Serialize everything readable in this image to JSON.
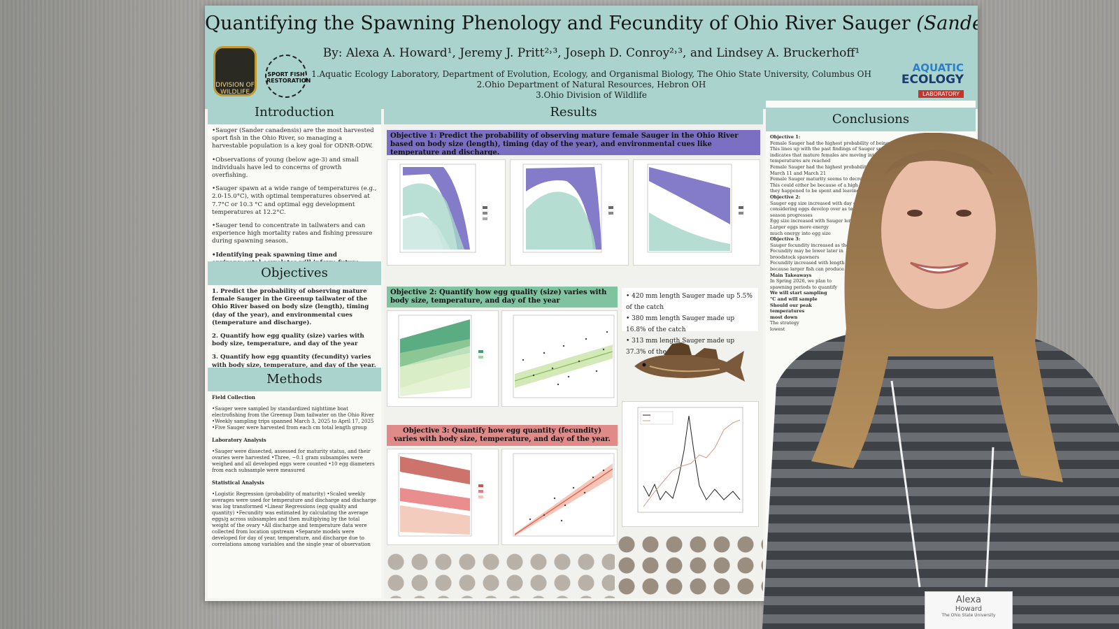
{
  "poster": {
    "title_main": "Quantifying the Spawning Phenology and Fecundity of Ohio River Sauger",
    "title_species": "(Sander canadensis)",
    "authors": "By: Alexa A. Howard¹, Jeremy J. Pritt²˒³, Joseph D. Conroy²˒³, and Lindsey A. Bruckerhoff¹",
    "affiliations": [
      "1.Aquatic Ecology Laboratory, Department of Evolution, Ecology, and Organismal Biology, The Ohio State University, Columbus OH",
      "2.Ohio Department of Natural Resources, Hebron OH",
      "3.Ohio Division of Wildlife"
    ],
    "logos": {
      "odnr": "DIVISION OF WILDLIFE",
      "sfr": "SPORT FISH RESTORATION",
      "aquatic_line1": "AQUATIC",
      "aquatic_line2": "ECOLOGY",
      "aquatic_line3": "LABORATORY"
    },
    "introduction": {
      "heading": "Introduction",
      "bullets": [
        "•Sauger (Sander canadensis) are the most harvested sport fish in the Ohio River, so managing a harvestable population is a key goal for ODNR-ODW.",
        "•Observations of young (below age-3) and small individuals have led to concerns of growth overfishing.",
        "•Sauger spawn at a wide range of temperatures (e.g., 2.0-15.0°C), with optimal temperatures observed at 7.7°C or 10.3 °C and optimal egg development temperatures at 12.2°C.",
        "•Sauger tend to concentrate in tailwaters and can experience high mortality rates and fishing pressure during spawning season."
      ],
      "bold_bullet": "•Identifying peak spawning time and environmental correlates will inform future studies of reproductive trait variation across the Ohio River and collection of broodstock from the Ohio River for Sauger reintroduction to Lake Erie"
    },
    "objectives": {
      "heading": "Objectives",
      "items": [
        "1. Predict the probability of observing mature female Sauger in the Greenup tailwater of the Ohio River based on body size (length), timing (day of the year), and environmental cues (temperature and discharge).",
        "2. Quantify how egg quality (size) varies with body size, temperature, and day of the year",
        "3. Quantify how egg quantity (fecundity) varies with body size, temperature, and day of the year."
      ]
    },
    "methods": {
      "heading": "Methods",
      "field_heading": "Field Collection",
      "field_text": "•Sauger were sampled by standardized nighttime boat electrofishing from the Greenup Dam tailwater on the Ohio River •Weekly sampling trips spanned March 3, 2025 to April 17, 2025 •Five Sauger were harvested from each cm total length group",
      "lab_heading": "Laboratory Analysis",
      "lab_text": "•Sauger were dissected, assessed for maturity status, and their ovaries were harvested •Three, ~0.1 gram subsamples were weighed and all developed eggs were counted •10 egg diameters from each subsample were measured",
      "stat_heading": "Statistical Analysis",
      "stat_text": "•Logistic Regression (probability of maturity) •Scaled weekly averages were used for temperature and discharge and discharge was log transformed •Linear Regressions (egg quality and quantity) •Fecundity was estimated by calculating the average eggs/g across subsamples and then multiplying by the total weight of the ovary •All discharge and temperature data were collected from location upstream •Separate models were developed for day of year, temperature, and discharge due to correlations among variables and the single year of observation"
    },
    "results": {
      "heading": "Results",
      "objective1": "Objective 1: Predict the probability of observing mature female Sauger in the Ohio River based on body size (length), timing (day of the year), and environmental cues like temperature and discharge.",
      "objective2": "Objective 2: Quantify how egg quality (size) varies with body size, temperature, and day of the year",
      "objective3": "Objective 3: Quantify how egg quantity (fecundity) varies with body size, temperature, and day of the year.",
      "catch_stats": [
        "• 420 mm length Sauger made up 5.5% of the catch",
        "• 380 mm length Sauger made up 16.8% of the catch",
        "• 313 mm length Sauger made up 37.3% of the catch"
      ]
    },
    "conclusions": {
      "heading": "Conclusions",
      "lines": [
        "Objective 1:",
        "Female Sauger had the highest probability of being mature at",
        "This lines up with the past findings of Sauger spawning",
        "indicates that mature females are moving into the",
        "temperatures are reached",
        "Female Sauger had the highest probability of being",
        "March 11 and March 21",
        "Female Sauger maturity seems to decrease with",
        "This could either be because of a high flow",
        "they happened to be spent and leaving",
        "Objective 2:",
        "Sauger egg size increased with day of year",
        "considering eggs develop over as temperature",
        "season progresses",
        "Egg size increased with Sauger length",
        "Larger eggs more energy",
        "much energy into egg size",
        "Objective 3:",
        "Sauger fecundity increased as the",
        "Fecundity may be lower later in",
        "broodstock spawners",
        "Fecundity increased with length",
        "because larger fish can produce",
        "Main Takeaways",
        "In Spring 2026, we plan to",
        "spawning periods to quantify",
        "We will start sampling",
        "°C and will sample",
        "Should our peak",
        "temperatures",
        "most down",
        "The strategy",
        "lowest"
      ]
    }
  },
  "badge": {
    "line1": "Alexa",
    "line2": "Howard",
    "line3": "The Ohio State University"
  },
  "colors": {
    "header_teal": "#a9d3cc",
    "obj1_purple": "#7b6fc4",
    "obj2_green": "#7fc3a0",
    "obj3_red": "#e08a8a"
  }
}
